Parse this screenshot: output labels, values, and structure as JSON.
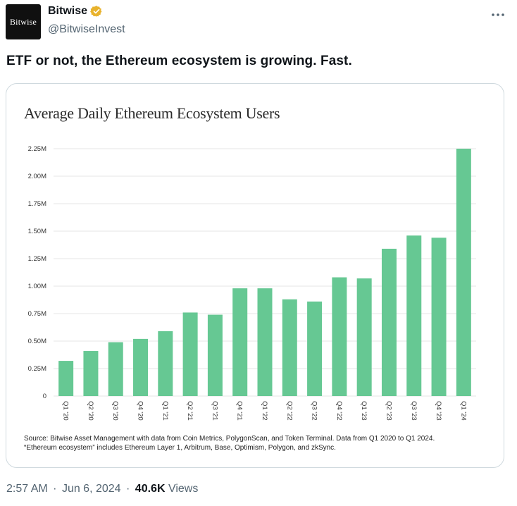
{
  "tweet": {
    "author_name": "Bitwise",
    "handle": "@BitwiseInvest",
    "avatar_text": "Bitwise",
    "text": "ETF or not, the Ethereum ecosystem is growing. Fast.",
    "time": "2:57 AM",
    "date": "Jun 6, 2024",
    "views_count": "40.6K",
    "views_label": "Views",
    "separator": "·"
  },
  "chart_data": {
    "type": "bar",
    "title": "Average Daily Ethereum Ecosystem Users",
    "categories": [
      "Q1 '20",
      "Q2 '20",
      "Q3 '20",
      "Q4 '20",
      "Q1 '21",
      "Q2 '21",
      "Q3 '21",
      "Q4 '21",
      "Q1 '22",
      "Q2 '22",
      "Q3 '22",
      "Q4 '22",
      "Q1 '23",
      "Q2 '23",
      "Q3 '23",
      "Q4 '23",
      "Q1 '24"
    ],
    "values": [
      0.32,
      0.41,
      0.49,
      0.52,
      0.59,
      0.76,
      0.74,
      0.98,
      0.98,
      0.88,
      0.86,
      1.08,
      1.07,
      1.34,
      1.46,
      1.44,
      2.25
    ],
    "yticks": [
      "0",
      "0.25M",
      "0.50M",
      "0.75M",
      "1.00M",
      "1.25M",
      "1.50M",
      "1.75M",
      "2.00M",
      "2.25M"
    ],
    "ylim": [
      0,
      2.25
    ],
    "bar_color": "#66c893",
    "grid": true,
    "xlabel": "",
    "ylabel": "",
    "source_line1": "Source: Bitwise Asset Management with data from Coin Metrics, PolygonScan, and Token Terminal. Data from Q1 2020 to Q1 2024.",
    "source_line2": "“Ethereum ecosystem” includes Ethereum Layer 1, Arbitrum, Base, Optimism, Polygon, and zkSync."
  },
  "colors": {
    "verified_badge": "#e8b22c",
    "text_secondary": "#536471",
    "card_border": "#cfd9de"
  },
  "icons": {
    "verified": "verified-badge-icon",
    "more": "more-options-icon"
  }
}
